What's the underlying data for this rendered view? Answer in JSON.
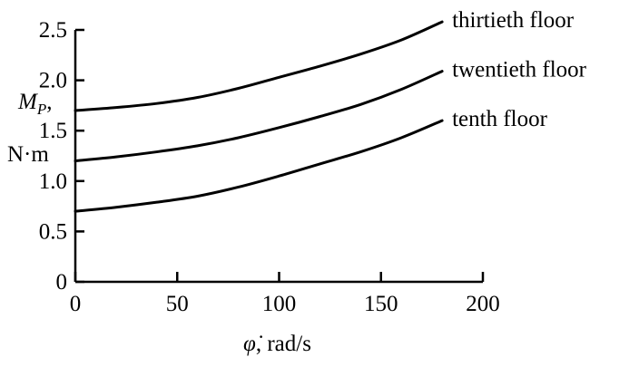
{
  "chart_data": {
    "type": "line",
    "xlabel_symbol": "φ̇",
    "xlabel_unit": ", rad/s",
    "ylabel_symbol": "M",
    "ylabel_subscript": "P",
    "ylabel_comma": ",",
    "ylabel_unit": "N·m",
    "xlim": [
      0,
      200
    ],
    "ylim": [
      0,
      2.5
    ],
    "xticks": [
      0,
      50,
      100,
      150,
      200
    ],
    "xtick_labels": [
      "0",
      "50",
      "100",
      "150",
      "200"
    ],
    "yticks": [
      0,
      0.5,
      1.0,
      1.5,
      2.0,
      2.5
    ],
    "ytick_labels": [
      "0",
      "0.5",
      "1.0",
      "1.5",
      "2.0",
      "2.5"
    ],
    "grid": false,
    "legend": "inline labels at line ends",
    "series": [
      {
        "name": "tenth floor",
        "x": [
          0,
          20,
          40,
          60,
          80,
          100,
          120,
          140,
          160,
          180
        ],
        "values": [
          0.7,
          0.74,
          0.79,
          0.85,
          0.94,
          1.05,
          1.17,
          1.29,
          1.43,
          1.6
        ]
      },
      {
        "name": "twentieth floor",
        "x": [
          0,
          20,
          40,
          60,
          80,
          100,
          120,
          140,
          160,
          180
        ],
        "values": [
          1.2,
          1.24,
          1.29,
          1.35,
          1.43,
          1.53,
          1.64,
          1.76,
          1.91,
          2.09
        ]
      },
      {
        "name": "thirtieth floor",
        "x": [
          0,
          20,
          40,
          60,
          80,
          100,
          120,
          140,
          160,
          180
        ],
        "values": [
          1.7,
          1.73,
          1.77,
          1.83,
          1.92,
          2.03,
          2.14,
          2.26,
          2.4,
          2.58
        ]
      }
    ]
  }
}
